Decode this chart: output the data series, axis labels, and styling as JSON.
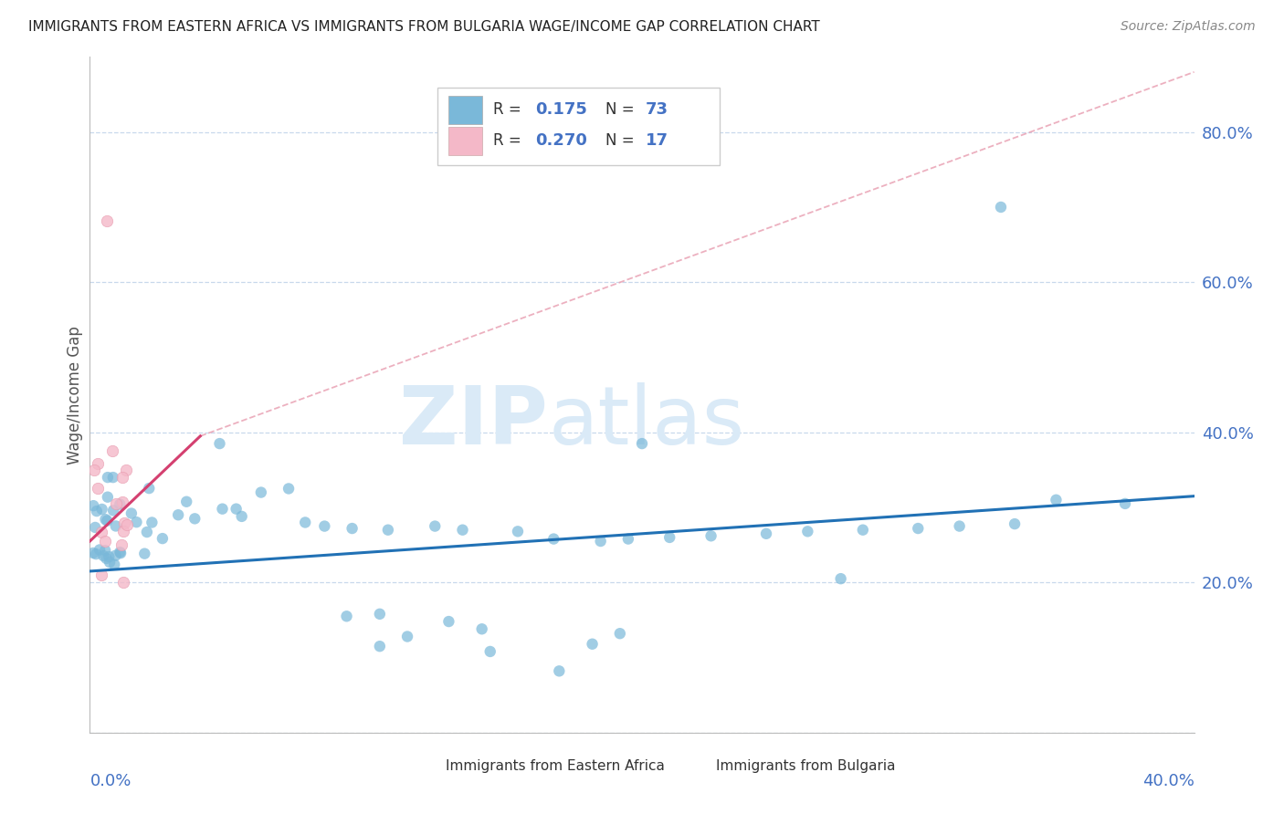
{
  "title": "IMMIGRANTS FROM EASTERN AFRICA VS IMMIGRANTS FROM BULGARIA WAGE/INCOME GAP CORRELATION CHART",
  "source": "Source: ZipAtlas.com",
  "ylabel": "Wage/Income Gap",
  "xlim": [
    0.0,
    0.4
  ],
  "ylim": [
    0.0,
    0.9
  ],
  "ytick_vals": [
    0.0,
    0.2,
    0.4,
    0.6,
    0.8
  ],
  "ytick_labels": [
    "",
    "20.0%",
    "40.0%",
    "60.0%",
    "80.0%"
  ],
  "legend_r1": "0.175",
  "legend_n1": "73",
  "legend_r2": "0.270",
  "legend_n2": "17",
  "color_blue_scatter": "#7ab8d9",
  "color_pink_scatter": "#f4b8c8",
  "color_trend_blue": "#2171b5",
  "color_trend_pink": "#d44070",
  "color_trend_pink_dashed": "#e89db0",
  "color_axis_label": "#4472c4",
  "color_grid": "#c8d8ec",
  "color_legend_text": "#333333",
  "color_source": "#888888",
  "watermark_color": "#daeaf7",
  "trend_blue_x0": 0.0,
  "trend_blue_y0": 0.215,
  "trend_blue_x1": 0.4,
  "trend_blue_y1": 0.315,
  "trend_pink_x0": 0.0,
  "trend_pink_y0": 0.255,
  "trend_pink_x1": 0.04,
  "trend_pink_y1": 0.395,
  "trend_pink_dash_x0": 0.04,
  "trend_pink_dash_y0": 0.395,
  "trend_pink_dash_x1": 0.4,
  "trend_pink_dash_y1": 0.88
}
